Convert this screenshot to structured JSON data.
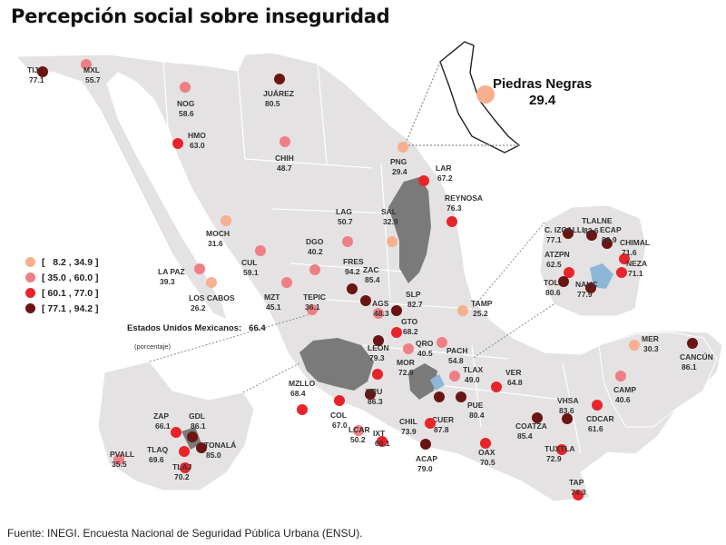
{
  "title": "Percepción social sobre inseguridad",
  "legend": [
    {
      "label": "[   8.2 , 34.9 ]",
      "color": "#f6b08f"
    },
    {
      "label": "[ 35.0 , 60.0 ]",
      "color": "#ee7f85"
    },
    {
      "label": "[ 60.1 , 77.0 ]",
      "color": "#e8242b"
    },
    {
      "label": "[ 77.1 , 94.2 ]",
      "color": "#6b1414"
    }
  ],
  "national": {
    "label": "Estados Unidos Mexicanos:",
    "value": "66.4",
    "unit": "(porcentaje)"
  },
  "inset": {
    "name": "Piedras Negras",
    "value": "29.4",
    "color": "#f6b08f"
  },
  "source": "Fuente: INEGI. Encuesta Nacional de Seguridad Pública Urbana (ENSU).",
  "colors": {
    "land": "#e4e2e2",
    "border": "#ffffff",
    "highlight_gray": "#7a7a7a",
    "highlight_blue": "#8db7d9",
    "connector": "#8a8a8a"
  },
  "cities": [
    {
      "name": "TIJ",
      "value": "77.1",
      "level": 4
    },
    {
      "name": "MXL",
      "value": "55.7",
      "level": 2
    },
    {
      "name": "JUÁREZ",
      "value": "80.5",
      "level": 4
    },
    {
      "name": "NOG",
      "value": "58.6",
      "level": 2
    },
    {
      "name": "HMO",
      "value": "63.0",
      "level": 3
    },
    {
      "name": "CHIH",
      "value": "48.7",
      "level": 2
    },
    {
      "name": "PNG",
      "value": "29.4",
      "level": 1
    },
    {
      "name": "LAR",
      "value": "67.2",
      "level": 3
    },
    {
      "name": "REYNOSA",
      "value": "76.3",
      "level": 3
    },
    {
      "name": "LAG",
      "value": "50.7",
      "level": 2
    },
    {
      "name": "SAL",
      "value": "32.9",
      "level": 1
    },
    {
      "name": "MOCH",
      "value": "31.6",
      "level": 1
    },
    {
      "name": "DGO",
      "value": "40.2",
      "level": 2
    },
    {
      "name": "CUL",
      "value": "59.1",
      "level": 2
    },
    {
      "name": "LA PAZ",
      "value": "39.3",
      "level": 2
    },
    {
      "name": "LOS CABOS",
      "value": "26.2",
      "level": 1
    },
    {
      "name": "MZT",
      "value": "45.1",
      "level": 2
    },
    {
      "name": "FRES",
      "value": "94.2",
      "level": 4
    },
    {
      "name": "ZAC",
      "value": "85.4",
      "level": 4
    },
    {
      "name": "TEPIC",
      "value": "36.1",
      "level": 2
    },
    {
      "name": "AGS",
      "value": "48.3",
      "level": 2
    },
    {
      "name": "SLP",
      "value": "82.7",
      "level": 4
    },
    {
      "name": "TAMP",
      "value": "25.2",
      "level": 1
    },
    {
      "name": "GTO",
      "value": "68.2",
      "level": 3
    },
    {
      "name": "LEON",
      "value": "79.3",
      "level": 4
    },
    {
      "name": "QRO",
      "value": "40.5",
      "level": 2
    },
    {
      "name": "PACH",
      "value": "54.8",
      "level": 2
    },
    {
      "name": "MOR",
      "value": "72.9",
      "level": 3
    },
    {
      "name": "MZLLO",
      "value": "68.4",
      "level": 3
    },
    {
      "name": "COL",
      "value": "67.0",
      "level": 3
    },
    {
      "name": "URU",
      "value": "86.3",
      "level": 4
    },
    {
      "name": "TLAX",
      "value": "49.0",
      "level": 2
    },
    {
      "name": "VER",
      "value": "64.8",
      "level": 3
    },
    {
      "name": "PUE",
      "value": "80.4",
      "level": 4
    },
    {
      "name": "CUER",
      "value": "87.8",
      "level": 4
    },
    {
      "name": "CHIL",
      "value": "73.9",
      "level": 3
    },
    {
      "name": "LCAR",
      "value": "50.2",
      "level": 2
    },
    {
      "name": "IXT",
      "value": "60.1",
      "level": 3
    },
    {
      "name": "ACAP",
      "value": "79.0",
      "level": 4
    },
    {
      "name": "OAX",
      "value": "70.5",
      "level": 3
    },
    {
      "name": "COATZA",
      "value": "85.4",
      "level": 4
    },
    {
      "name": "VHSA",
      "value": "83.6",
      "level": 4
    },
    {
      "name": "CDCAR",
      "value": "61.6",
      "level": 3
    },
    {
      "name": "TUXTLA",
      "value": "72.9",
      "level": 3
    },
    {
      "name": "TAP",
      "value": "74.3",
      "level": 3
    },
    {
      "name": "CAMP",
      "value": "40.6",
      "level": 2
    },
    {
      "name": "MER",
      "value": "30.3",
      "level": 1
    },
    {
      "name": "CANCÚN",
      "value": "86.1",
      "level": 4
    },
    {
      "name": "TLALNE",
      "value": "82.6",
      "level": 4
    },
    {
      "name": "C. IZCALLI",
      "value": "77.1",
      "level": 4
    },
    {
      "name": "ECAP",
      "value": "89.9",
      "level": 4
    },
    {
      "name": "CHIMAL",
      "value": "71.6",
      "level": 3
    },
    {
      "name": "ATZPN",
      "value": "62.5",
      "level": 3
    },
    {
      "name": "NEZA",
      "value": "71.1",
      "level": 3
    },
    {
      "name": "TOL",
      "value": "80.6",
      "level": 4
    },
    {
      "name": "NAUC",
      "value": "77.9",
      "level": 4
    },
    {
      "name": "ZAP",
      "value": "66.1",
      "level": 3
    },
    {
      "name": "GDL",
      "value": "86.1",
      "level": 4
    },
    {
      "name": "TLAQ",
      "value": "69.6",
      "level": 3
    },
    {
      "name": "TONALÁ",
      "value": "85.0",
      "level": 4
    },
    {
      "name": "TLAJ",
      "value": "70.2",
      "level": 3
    },
    {
      "name": "PVALL",
      "value": "35.5",
      "level": 2
    }
  ]
}
